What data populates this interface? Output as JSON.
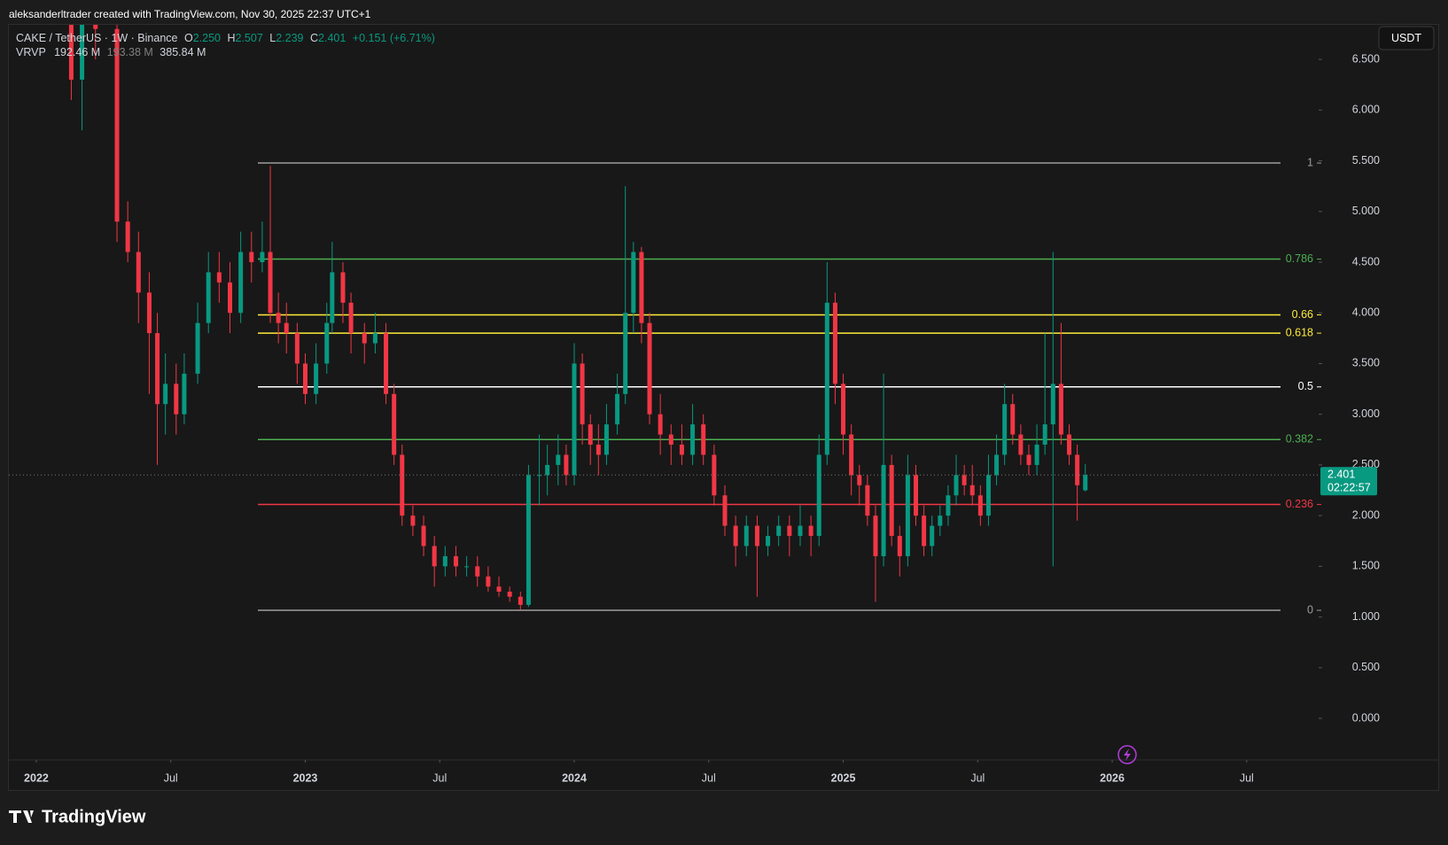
{
  "header": {
    "credit": "aleksanderltrader created with TradingView.com, Nov 30, 2025 22:37 UTC+1"
  },
  "legend": {
    "symbol": "CAKE / TetherUS · 1W · Binance",
    "o_label": "O",
    "o": "2.250",
    "h_label": "H",
    "h": "2.507",
    "l_label": "L",
    "l": "2.239",
    "c_label": "C",
    "c": "2.401",
    "change": "+0.151 (+6.71%)",
    "indicator": "VRVP",
    "vol_up": "192.46 M",
    "vol_down": "193.38 M",
    "vol_total": "385.84 M"
  },
  "currency_button": "USDT",
  "price_tag": {
    "price": "2.401",
    "countdown": "02:22:57"
  },
  "brand": "TradingView",
  "chart_data": {
    "type": "candlestick",
    "up_color": "#089981",
    "down_color": "#f23645",
    "xlim": [
      2021.898,
      2026.774
    ],
    "ylim": [
      -0.41,
      6.85
    ],
    "xticks": [
      {
        "value": 2022,
        "label": "2022"
      },
      {
        "value": 2022.5,
        "label": "Jul"
      },
      {
        "value": 2023,
        "label": "2023"
      },
      {
        "value": 2023.5,
        "label": "Jul"
      },
      {
        "value": 2024,
        "label": "2024"
      },
      {
        "value": 2024.5,
        "label": "Jul"
      },
      {
        "value": 2025,
        "label": "2025"
      },
      {
        "value": 2025.5,
        "label": "Jul"
      },
      {
        "value": 2026,
        "label": "2026"
      },
      {
        "value": 2026.5,
        "label": "Jul"
      }
    ],
    "yticks": [
      {
        "value": 0,
        "label": "0.000"
      },
      {
        "value": 0.5,
        "label": "0.500"
      },
      {
        "value": 1,
        "label": "1.000"
      },
      {
        "value": 1.5,
        "label": "1.500"
      },
      {
        "value": 2,
        "label": "2.000"
      },
      {
        "value": 2.5,
        "label": "2.500"
      },
      {
        "value": 3,
        "label": "3.000"
      },
      {
        "value": 3.5,
        "label": "3.500"
      },
      {
        "value": 4,
        "label": "4.000"
      },
      {
        "value": 4.5,
        "label": "4.500"
      },
      {
        "value": 5,
        "label": "5.000"
      },
      {
        "value": 5.5,
        "label": "5.500"
      },
      {
        "value": 6,
        "label": "6.000"
      },
      {
        "value": 6.5,
        "label": "6.500"
      }
    ],
    "last_price": 2.401,
    "fib_levels": [
      {
        "label": "1",
        "price": 5.478,
        "color": "#9e9e9e"
      },
      {
        "label": "0.786",
        "price": 4.53,
        "color": "#4caf50"
      },
      {
        "label": "0.66",
        "price": 3.98,
        "color": "#ffeb3b"
      },
      {
        "label": "0.618",
        "price": 3.8,
        "color": "#ffeb3b"
      },
      {
        "label": "0.5",
        "price": 3.27,
        "color": "#ffffff"
      },
      {
        "label": "0.382",
        "price": 2.75,
        "color": "#4caf50"
      },
      {
        "label": "0.236",
        "price": 2.11,
        "color": "#f23645"
      },
      {
        "label": "0",
        "price": 1.066,
        "color": "#9e9e9e"
      }
    ],
    "x": [
      2022.13,
      2022.17,
      2022.22,
      2022.3,
      2022.34,
      2022.38,
      2022.42,
      2022.45,
      2022.48,
      2022.52,
      2022.55,
      2022.6,
      2022.64,
      2022.68,
      2022.72,
      2022.76,
      2022.8,
      2022.84,
      2022.87,
      2022.9,
      2022.93,
      2022.97,
      2023.0,
      2023.04,
      2023.08,
      2023.1,
      2023.14,
      2023.17,
      2023.22,
      2023.26,
      2023.3,
      2023.33,
      2023.36,
      2023.4,
      2023.44,
      2023.48,
      2023.52,
      2023.56,
      2023.6,
      2023.64,
      2023.68,
      2023.72,
      2023.76,
      2023.8,
      2023.83,
      2023.87,
      2023.9,
      2023.94,
      2023.97,
      2024.0,
      2024.03,
      2024.06,
      2024.09,
      2024.12,
      2024.16,
      2024.19,
      2024.22,
      2024.25,
      2024.28,
      2024.32,
      2024.36,
      2024.4,
      2024.44,
      2024.48,
      2024.52,
      2024.56,
      2024.6,
      2024.64,
      2024.68,
      2024.72,
      2024.76,
      2024.8,
      2024.84,
      2024.88,
      2024.91,
      2024.94,
      2024.97,
      2025.0,
      2025.03,
      2025.06,
      2025.09,
      2025.12,
      2025.15,
      2025.18,
      2025.21,
      2025.24,
      2025.27,
      2025.3,
      2025.33,
      2025.36,
      2025.39,
      2025.42,
      2025.45,
      2025.48,
      2025.51,
      2025.54,
      2025.57,
      2025.6,
      2025.63,
      2025.66,
      2025.69,
      2025.72,
      2025.75,
      2025.78,
      2025.81,
      2025.84,
      2025.87,
      2025.9
    ],
    "ohlc": [
      [
        7.5,
        7.8,
        6.1,
        6.3
      ],
      [
        6.3,
        7.3,
        5.8,
        7.0
      ],
      [
        7.0,
        7.4,
        6.5,
        6.8
      ],
      [
        6.8,
        7.1,
        4.7,
        4.9
      ],
      [
        4.9,
        5.1,
        4.5,
        4.6
      ],
      [
        4.6,
        4.8,
        3.9,
        4.2
      ],
      [
        4.2,
        4.4,
        3.2,
        3.8
      ],
      [
        3.8,
        4.0,
        2.5,
        3.1
      ],
      [
        3.1,
        3.6,
        2.8,
        3.3
      ],
      [
        3.3,
        3.5,
        2.8,
        3.0
      ],
      [
        3.0,
        3.6,
        2.9,
        3.4
      ],
      [
        3.4,
        4.1,
        3.3,
        3.9
      ],
      [
        3.9,
        4.6,
        3.8,
        4.4
      ],
      [
        4.4,
        4.6,
        4.1,
        4.3
      ],
      [
        4.3,
        4.5,
        3.8,
        4.0
      ],
      [
        4.0,
        4.8,
        3.9,
        4.6
      ],
      [
        4.6,
        4.8,
        4.3,
        4.5
      ],
      [
        4.5,
        4.9,
        4.4,
        4.6
      ],
      [
        4.6,
        5.45,
        3.9,
        4.0
      ],
      [
        4.0,
        4.2,
        3.7,
        3.9
      ],
      [
        3.9,
        4.1,
        3.6,
        3.8
      ],
      [
        3.8,
        3.9,
        3.3,
        3.5
      ],
      [
        3.5,
        3.6,
        3.1,
        3.2
      ],
      [
        3.2,
        3.7,
        3.1,
        3.5
      ],
      [
        3.5,
        4.1,
        3.4,
        3.9
      ],
      [
        3.9,
        4.7,
        3.8,
        4.4
      ],
      [
        4.4,
        4.5,
        3.9,
        4.1
      ],
      [
        4.1,
        4.2,
        3.6,
        3.8
      ],
      [
        3.8,
        3.9,
        3.5,
        3.7
      ],
      [
        3.7,
        4.0,
        3.6,
        3.8
      ],
      [
        3.8,
        3.9,
        3.1,
        3.2
      ],
      [
        3.2,
        3.3,
        2.5,
        2.6
      ],
      [
        2.6,
        2.7,
        1.9,
        2.0
      ],
      [
        2.0,
        2.1,
        1.8,
        1.9
      ],
      [
        1.9,
        2.0,
        1.6,
        1.7
      ],
      [
        1.7,
        1.8,
        1.3,
        1.5
      ],
      [
        1.5,
        1.7,
        1.4,
        1.6
      ],
      [
        1.6,
        1.7,
        1.4,
        1.5
      ],
      [
        1.5,
        1.6,
        1.4,
        1.5
      ],
      [
        1.5,
        1.6,
        1.3,
        1.4
      ],
      [
        1.4,
        1.5,
        1.25,
        1.3
      ],
      [
        1.3,
        1.4,
        1.2,
        1.25
      ],
      [
        1.25,
        1.3,
        1.15,
        1.2
      ],
      [
        1.2,
        1.25,
        1.07,
        1.12
      ],
      [
        1.12,
        2.5,
        1.1,
        2.4
      ],
      [
        2.4,
        2.8,
        2.1,
        2.4
      ],
      [
        2.4,
        2.7,
        2.2,
        2.5
      ],
      [
        2.5,
        2.8,
        2.3,
        2.6
      ],
      [
        2.6,
        2.7,
        2.3,
        2.4
      ],
      [
        2.4,
        3.7,
        2.3,
        3.5
      ],
      [
        3.5,
        3.6,
        2.7,
        2.9
      ],
      [
        2.9,
        3.0,
        2.5,
        2.7
      ],
      [
        2.7,
        2.9,
        2.4,
        2.6
      ],
      [
        2.6,
        3.1,
        2.5,
        2.9
      ],
      [
        2.9,
        3.4,
        2.8,
        3.2
      ],
      [
        3.2,
        5.25,
        3.1,
        4.0
      ],
      [
        4.0,
        4.7,
        3.8,
        4.6
      ],
      [
        4.6,
        4.65,
        3.7,
        3.9
      ],
      [
        3.9,
        4.0,
        2.9,
        3.0
      ],
      [
        3.0,
        3.2,
        2.6,
        2.8
      ],
      [
        2.8,
        2.9,
        2.5,
        2.7
      ],
      [
        2.7,
        2.9,
        2.5,
        2.6
      ],
      [
        2.6,
        3.1,
        2.5,
        2.9
      ],
      [
        2.9,
        3.0,
        2.5,
        2.6
      ],
      [
        2.6,
        2.7,
        2.1,
        2.2
      ],
      [
        2.2,
        2.3,
        1.8,
        1.9
      ],
      [
        1.9,
        2.0,
        1.5,
        1.7
      ],
      [
        1.7,
        2.0,
        1.6,
        1.9
      ],
      [
        1.9,
        2.0,
        1.2,
        1.7
      ],
      [
        1.7,
        1.9,
        1.6,
        1.8
      ],
      [
        1.8,
        2.0,
        1.7,
        1.9
      ],
      [
        1.9,
        2.0,
        1.6,
        1.8
      ],
      [
        1.8,
        2.1,
        1.7,
        1.9
      ],
      [
        1.9,
        2.0,
        1.6,
        1.8
      ],
      [
        1.8,
        2.8,
        1.7,
        2.6
      ],
      [
        2.6,
        4.5,
        2.5,
        4.1
      ],
      [
        4.1,
        4.2,
        3.1,
        3.3
      ],
      [
        3.3,
        3.4,
        2.6,
        2.8
      ],
      [
        2.8,
        2.9,
        2.2,
        2.4
      ],
      [
        2.4,
        2.5,
        2.1,
        2.3
      ],
      [
        2.3,
        2.4,
        1.9,
        2.0
      ],
      [
        2.0,
        2.1,
        1.15,
        1.6
      ],
      [
        1.6,
        3.4,
        1.5,
        2.5
      ],
      [
        2.5,
        2.6,
        1.7,
        1.8
      ],
      [
        1.8,
        1.9,
        1.4,
        1.6
      ],
      [
        1.6,
        2.6,
        1.5,
        2.4
      ],
      [
        2.4,
        2.5,
        1.9,
        2.0
      ],
      [
        2.0,
        2.1,
        1.6,
        1.7
      ],
      [
        1.7,
        2.0,
        1.6,
        1.9
      ],
      [
        1.9,
        2.1,
        1.8,
        2.0
      ],
      [
        2.0,
        2.3,
        1.9,
        2.2
      ],
      [
        2.2,
        2.6,
        2.1,
        2.4
      ],
      [
        2.4,
        2.5,
        2.2,
        2.3
      ],
      [
        2.3,
        2.5,
        2.1,
        2.2
      ],
      [
        2.2,
        2.3,
        1.9,
        2.0
      ],
      [
        2.0,
        2.6,
        1.9,
        2.4
      ],
      [
        2.4,
        2.8,
        2.3,
        2.6
      ],
      [
        2.6,
        3.3,
        2.5,
        3.1
      ],
      [
        3.1,
        3.2,
        2.7,
        2.8
      ],
      [
        2.8,
        2.9,
        2.5,
        2.6
      ],
      [
        2.6,
        2.7,
        2.4,
        2.5
      ],
      [
        2.5,
        2.9,
        2.4,
        2.7
      ],
      [
        2.7,
        3.8,
        2.6,
        2.9
      ],
      [
        2.9,
        4.6,
        1.5,
        3.3
      ],
      [
        3.3,
        3.9,
        2.7,
        2.8
      ],
      [
        2.8,
        2.9,
        2.5,
        2.6
      ],
      [
        2.6,
        2.7,
        1.95,
        2.3
      ],
      [
        2.25,
        2.507,
        2.239,
        2.401
      ]
    ]
  }
}
